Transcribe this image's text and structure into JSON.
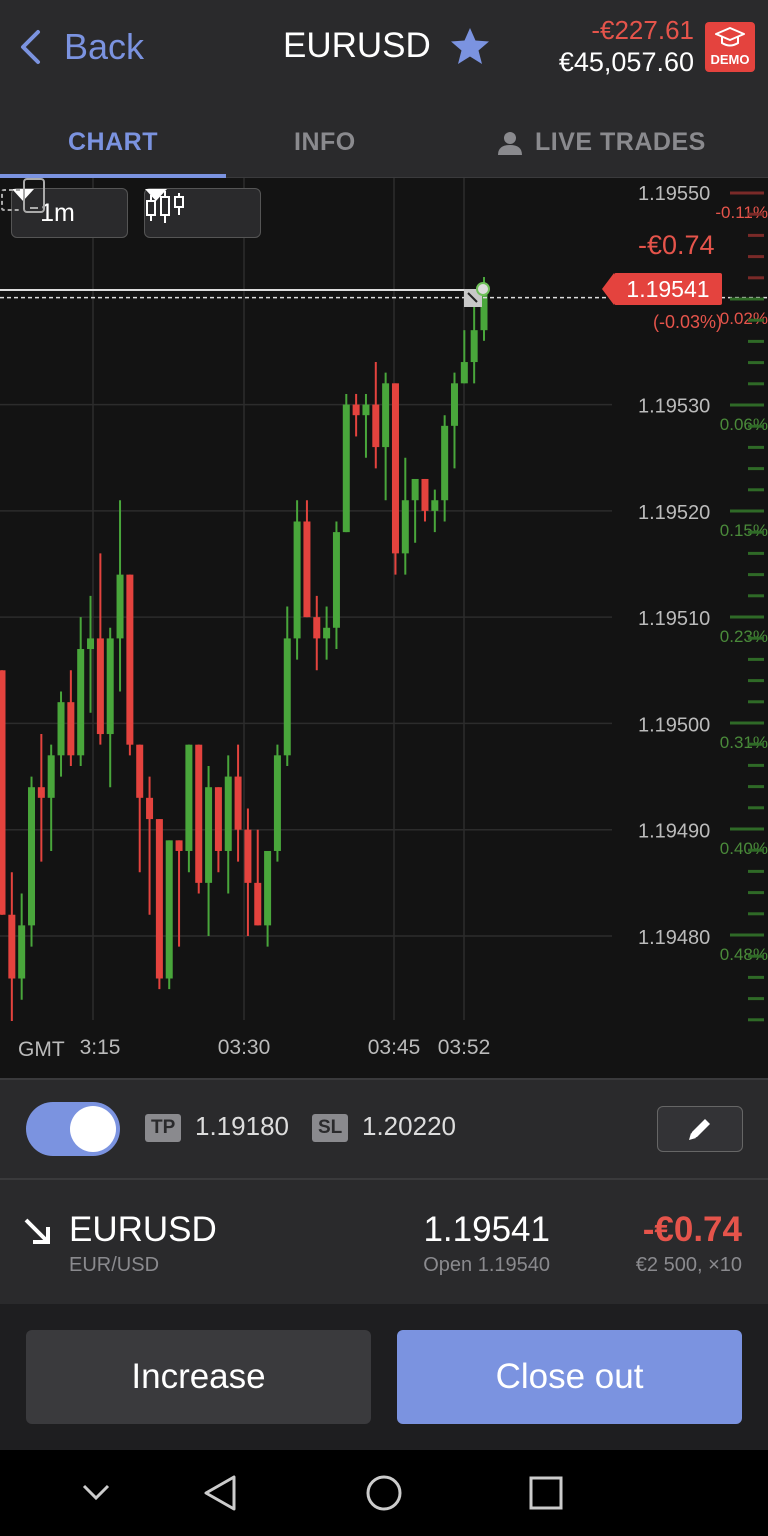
{
  "header": {
    "back_label": "Back",
    "symbol": "EURUSD",
    "pnl": "-€227.61",
    "equity": "€45,057.60",
    "demo_label": "DEMO"
  },
  "tabs": [
    {
      "label": "CHART"
    },
    {
      "label": "INFO"
    },
    {
      "label": "LIVE TRADES"
    }
  ],
  "chart_controls": {
    "timeframe": "1m"
  },
  "chart_data": {
    "type": "candlestick",
    "price_axis": [
      "1.19550",
      "1.19530",
      "1.19520",
      "1.19510",
      "1.19500",
      "1.19490",
      "1.19480"
    ],
    "pct_axis": [
      "-0.11%",
      "0.02%",
      "0.06%",
      "0.15%",
      "0.23%",
      "0.31%",
      "0.40%",
      "0.48%"
    ],
    "time_axis": [
      "3:15",
      "03:30",
      "03:45",
      "03:52"
    ],
    "timezone": "GMT",
    "current_price": "1.19541",
    "current_pnl": "-€0.74",
    "current_pct": "(-0.03%)",
    "ylim": [
      1.19474,
      1.19553
    ],
    "candles": [
      {
        "o": 1.19505,
        "h": 1.19505,
        "l": 1.19482,
        "c": 1.19482
      },
      {
        "o": 1.19482,
        "h": 1.19486,
        "l": 1.19472,
        "c": 1.19476
      },
      {
        "o": 1.19476,
        "h": 1.19484,
        "l": 1.19474,
        "c": 1.19481
      },
      {
        "o": 1.19481,
        "h": 1.19495,
        "l": 1.19479,
        "c": 1.19494
      },
      {
        "o": 1.19494,
        "h": 1.19499,
        "l": 1.19487,
        "c": 1.19493
      },
      {
        "o": 1.19493,
        "h": 1.19498,
        "l": 1.19488,
        "c": 1.19497
      },
      {
        "o": 1.19497,
        "h": 1.19503,
        "l": 1.19495,
        "c": 1.19502
      },
      {
        "o": 1.19502,
        "h": 1.19505,
        "l": 1.19496,
        "c": 1.19497
      },
      {
        "o": 1.19497,
        "h": 1.1951,
        "l": 1.19496,
        "c": 1.19507
      },
      {
        "o": 1.19507,
        "h": 1.19512,
        "l": 1.19501,
        "c": 1.19508
      },
      {
        "o": 1.19508,
        "h": 1.19516,
        "l": 1.19498,
        "c": 1.19499
      },
      {
        "o": 1.19499,
        "h": 1.19509,
        "l": 1.19494,
        "c": 1.19508
      },
      {
        "o": 1.19508,
        "h": 1.19521,
        "l": 1.19503,
        "c": 1.19514
      },
      {
        "o": 1.19514,
        "h": 1.19514,
        "l": 1.19497,
        "c": 1.19498
      },
      {
        "o": 1.19498,
        "h": 1.19498,
        "l": 1.19486,
        "c": 1.19493
      },
      {
        "o": 1.19493,
        "h": 1.19495,
        "l": 1.19482,
        "c": 1.19491
      },
      {
        "o": 1.19491,
        "h": 1.19491,
        "l": 1.19475,
        "c": 1.19476
      },
      {
        "o": 1.19476,
        "h": 1.19489,
        "l": 1.19475,
        "c": 1.19489
      },
      {
        "o": 1.19489,
        "h": 1.19489,
        "l": 1.19479,
        "c": 1.19488
      },
      {
        "o": 1.19488,
        "h": 1.19498,
        "l": 1.19486,
        "c": 1.19498
      },
      {
        "o": 1.19498,
        "h": 1.19498,
        "l": 1.19484,
        "c": 1.19485
      },
      {
        "o": 1.19485,
        "h": 1.19496,
        "l": 1.1948,
        "c": 1.19494
      },
      {
        "o": 1.19494,
        "h": 1.19494,
        "l": 1.19486,
        "c": 1.19488
      },
      {
        "o": 1.19488,
        "h": 1.19497,
        "l": 1.19484,
        "c": 1.19495
      },
      {
        "o": 1.19495,
        "h": 1.19498,
        "l": 1.19487,
        "c": 1.1949
      },
      {
        "o": 1.1949,
        "h": 1.19492,
        "l": 1.1948,
        "c": 1.19485
      },
      {
        "o": 1.19485,
        "h": 1.1949,
        "l": 1.19481,
        "c": 1.19481
      },
      {
        "o": 1.19481,
        "h": 1.19488,
        "l": 1.19479,
        "c": 1.19488
      },
      {
        "o": 1.19488,
        "h": 1.19498,
        "l": 1.19487,
        "c": 1.19497
      },
      {
        "o": 1.19497,
        "h": 1.19511,
        "l": 1.19496,
        "c": 1.19508
      },
      {
        "o": 1.19508,
        "h": 1.19521,
        "l": 1.19506,
        "c": 1.19519
      },
      {
        "o": 1.19519,
        "h": 1.19521,
        "l": 1.1951,
        "c": 1.1951
      },
      {
        "o": 1.1951,
        "h": 1.19512,
        "l": 1.19505,
        "c": 1.19508
      },
      {
        "o": 1.19508,
        "h": 1.19511,
        "l": 1.19506,
        "c": 1.19509
      },
      {
        "o": 1.19509,
        "h": 1.19519,
        "l": 1.19507,
        "c": 1.19518
      },
      {
        "o": 1.19518,
        "h": 1.19531,
        "l": 1.19518,
        "c": 1.1953
      },
      {
        "o": 1.1953,
        "h": 1.19531,
        "l": 1.19527,
        "c": 1.19529
      },
      {
        "o": 1.19529,
        "h": 1.19531,
        "l": 1.19525,
        "c": 1.1953
      },
      {
        "o": 1.1953,
        "h": 1.19534,
        "l": 1.19524,
        "c": 1.19526
      },
      {
        "o": 1.19526,
        "h": 1.19533,
        "l": 1.19521,
        "c": 1.19532
      },
      {
        "o": 1.19532,
        "h": 1.19532,
        "l": 1.19514,
        "c": 1.19516
      },
      {
        "o": 1.19516,
        "h": 1.19525,
        "l": 1.19514,
        "c": 1.19521
      },
      {
        "o": 1.19521,
        "h": 1.19523,
        "l": 1.19517,
        "c": 1.19523
      },
      {
        "o": 1.19523,
        "h": 1.19523,
        "l": 1.19519,
        "c": 1.1952
      },
      {
        "o": 1.1952,
        "h": 1.19522,
        "l": 1.19518,
        "c": 1.19521
      },
      {
        "o": 1.19521,
        "h": 1.19529,
        "l": 1.19519,
        "c": 1.19528
      },
      {
        "o": 1.19528,
        "h": 1.19533,
        "l": 1.19524,
        "c": 1.19532
      },
      {
        "o": 1.19532,
        "h": 1.19537,
        "l": 1.19532,
        "c": 1.19534
      },
      {
        "o": 1.19534,
        "h": 1.1954,
        "l": 1.19532,
        "c": 1.19537
      },
      {
        "o": 1.19537,
        "h": 1.19542,
        "l": 1.19536,
        "c": 1.19541
      }
    ]
  },
  "tpsl": {
    "tp_label": "TP",
    "tp_value": "1.19180",
    "sl_label": "SL",
    "sl_value": "1.20220",
    "enabled": true
  },
  "position": {
    "symbol": "EURUSD",
    "pair": "EUR/USD",
    "price": "1.19541",
    "open": "Open 1.19540",
    "pnl": "-€0.74",
    "size": "€2 500, ×10"
  },
  "actions": {
    "increase": "Increase",
    "close_out": "Close out"
  },
  "colors": {
    "accent": "#7b93e0",
    "up": "#49a63b",
    "down": "#e4433e",
    "loss_text": "#e5544b"
  }
}
